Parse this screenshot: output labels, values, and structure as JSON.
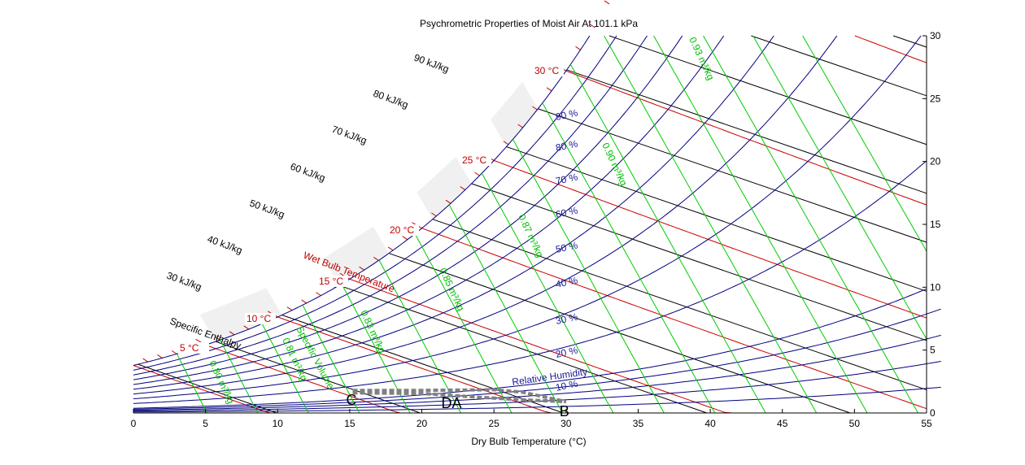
{
  "chart_data": {
    "type": "line",
    "title": "Psychrometric Properties of Moist Air At 101.1 kPa",
    "xlabel": "Dry Bulb Temperature (°C)",
    "xlim": [
      0,
      55
    ],
    "ylim": [
      0,
      30
    ],
    "x_ticks": [
      "0",
      "5",
      "10",
      "15",
      "20",
      "25",
      "30",
      "35",
      "40",
      "45",
      "50",
      "55"
    ],
    "y_ticks": [
      "0",
      "5",
      "10",
      "15",
      "20",
      "25",
      "30"
    ],
    "grid": false,
    "labels": {
      "enthalpy_title": "Specific Enthalpy",
      "wetbulb_title": "Wet Bulb Temperature",
      "rh_title": "Relative Humidity",
      "volume_title": "Specific Volume"
    },
    "enthalpy_lines": [
      {
        "value": 30,
        "label": "30 kJ/kg"
      },
      {
        "value": 40,
        "label": "40 kJ/kg"
      },
      {
        "value": 50,
        "label": "50 kJ/kg"
      },
      {
        "value": 60,
        "label": "60 kJ/kg"
      },
      {
        "value": 70,
        "label": "70 kJ/kg"
      },
      {
        "value": 80,
        "label": "80 kJ/kg"
      },
      {
        "value": 90,
        "label": "90 kJ/kg"
      }
    ],
    "wetbulb_lines": [
      {
        "value": 5,
        "label": "5 °C"
      },
      {
        "value": 10,
        "label": "10 °C"
      },
      {
        "value": 15,
        "label": "15 °C"
      },
      {
        "value": 20,
        "label": "20 °C"
      },
      {
        "value": 25,
        "label": "25 °C"
      },
      {
        "value": 30,
        "label": "30 °C"
      }
    ],
    "rh_lines": [
      {
        "value": 10,
        "label": "10 %"
      },
      {
        "value": 20,
        "label": "20 %"
      },
      {
        "value": 30,
        "label": "30 %"
      },
      {
        "value": 40,
        "label": "40 %"
      },
      {
        "value": 50,
        "label": "50 %"
      },
      {
        "value": 60,
        "label": "60 %"
      },
      {
        "value": 70,
        "label": "70 %"
      },
      {
        "value": 80,
        "label": "80 %"
      },
      {
        "value": 90,
        "label": "90 %"
      }
    ],
    "volume_lines": [
      {
        "value": 0.8,
        "label": "0.80 m³/kg"
      },
      {
        "value": 0.81,
        "label": "0.81 m³/kg"
      },
      {
        "value": 0.83,
        "label": "0.83 m³/kg"
      },
      {
        "value": 0.85,
        "label": "0.85 m³/kg"
      },
      {
        "value": 0.87,
        "label": "0.87 m³/kg"
      },
      {
        "value": 0.9,
        "label": "0.90 m³/kg"
      },
      {
        "value": 0.93,
        "label": "0.93 m³/kg"
      }
    ],
    "process_points": [
      {
        "name": "C",
        "x": 15.2,
        "y": 1.8
      },
      {
        "name": "DA",
        "x": 21.8,
        "y": 1.55
      },
      {
        "name": "B",
        "x": 30.0,
        "y": 0.9
      }
    ],
    "process_paths": [
      {
        "points": [
          [
            15.2,
            1.8
          ],
          [
            20,
            1.8
          ],
          [
            25,
            1.85
          ],
          [
            27,
            1.65
          ],
          [
            30,
            0.9
          ]
        ]
      },
      {
        "points": [
          [
            15.2,
            1.6
          ],
          [
            20,
            1.55
          ],
          [
            24,
            1.25
          ],
          [
            27,
            1.05
          ],
          [
            30,
            0.9
          ]
        ]
      }
    ],
    "colors": {
      "enthalpy": "#000000",
      "wetbulb": "#cc0000",
      "rh": "#00007f",
      "volume": "#00cc00",
      "process": "#808080",
      "shade": "#f0f0f0"
    }
  }
}
